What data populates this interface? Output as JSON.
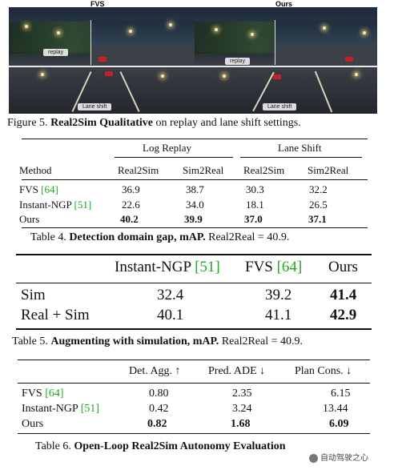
{
  "figure": {
    "left_title": "FVS",
    "right_title": "Ours",
    "replay_label": "replay",
    "lane_shift_label": "Lane shift",
    "caption_prefix": "Figure 5.",
    "caption_bold": "Real2Sim Qualitative",
    "caption_rest": "on replay and lane shift settings."
  },
  "table4": {
    "group_headers": [
      "Log Replay",
      "Lane Shift"
    ],
    "columns": [
      "Method",
      "Real2Sim",
      "Sim2Real",
      "Real2Sim",
      "Sim2Real"
    ],
    "rows": [
      {
        "method": "FVS",
        "ref": "[64]",
        "values": [
          "36.9",
          "38.7",
          "30.3",
          "32.2"
        ],
        "bold": false
      },
      {
        "method": "Instant-NGP",
        "ref": "[51]",
        "values": [
          "22.6",
          "34.0",
          "18.1",
          "26.5"
        ],
        "bold": false
      },
      {
        "method": "Ours",
        "ref": "",
        "values": [
          "40.2",
          "39.9",
          "37.0",
          "37.1"
        ],
        "bold": true
      }
    ],
    "caption_prefix": "Table 4.",
    "caption_bold": "Detection domain gap, mAP.",
    "caption_rest": "Real2Real = 40.9."
  },
  "table5": {
    "columns": [
      {
        "name": "Instant-NGP",
        "ref": "[51]"
      },
      {
        "name": "FVS",
        "ref": "[64]"
      },
      {
        "name": "Ours",
        "ref": ""
      }
    ],
    "rows": [
      {
        "label": "Sim",
        "values": [
          "32.4",
          "39.2",
          "41.4"
        ]
      },
      {
        "label": "Real + Sim",
        "values": [
          "40.1",
          "41.1",
          "42.9"
        ]
      }
    ],
    "caption_prefix": "Table 5.",
    "caption_bold": "Augmenting with simulation, mAP.",
    "caption_rest": "Real2Real = 40.9."
  },
  "table6": {
    "columns": [
      "Det. Agg. ↑",
      "Pred. ADE ↓",
      "Plan Cons. ↓"
    ],
    "rows": [
      {
        "method": "FVS",
        "ref": "[64]",
        "values": [
          "0.80",
          "2.35",
          "6.15"
        ],
        "bold": false
      },
      {
        "method": "Instant-NGP",
        "ref": "[51]",
        "values": [
          "0.42",
          "3.24",
          "13.44"
        ],
        "bold": false
      },
      {
        "method": "Ours",
        "ref": "",
        "values": [
          "0.82",
          "1.68",
          "6.09"
        ],
        "bold": true
      }
    ],
    "caption_prefix": "Table 6.",
    "caption_bold": "Open-Loop Real2Sim Autonomy Evaluation"
  },
  "watermark": "自动驾驶之心"
}
